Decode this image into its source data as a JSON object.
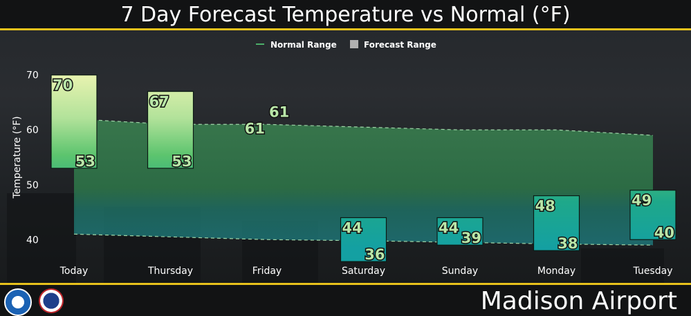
{
  "title": "7 Day Forecast Temperature vs Normal (°F)",
  "station": "Madison Airport",
  "logos": [
    "noaa-logo",
    "nws-logo"
  ],
  "colors": {
    "accent": "#e8c21c",
    "normal_line": "#4caf6a",
    "forecast_legend": "#b0b0b0"
  },
  "chart_data": {
    "type": "bar",
    "title": "7 Day Forecast Temperature vs Normal (°F)",
    "ylabel": "Temperature (°F)",
    "xlabel": "",
    "ylim": [
      38.4,
      72.1
    ],
    "yticks": [
      40,
      50,
      60,
      70
    ],
    "grid": false,
    "legend_position": "top-center",
    "legend": [
      "Normal Range",
      "Forecast Range"
    ],
    "categories": [
      "Today",
      "Thursday",
      "Friday",
      "Saturday",
      "Sunday",
      "Monday",
      "Tuesday"
    ],
    "forecast_high": [
      70,
      67,
      61,
      44,
      44,
      48,
      49
    ],
    "forecast_low": [
      53,
      53,
      61,
      36,
      39,
      38,
      40
    ],
    "normal_high": [
      62,
      61,
      61,
      60.5,
      60,
      60,
      59
    ],
    "normal_low": [
      41,
      40.5,
      40,
      39.8,
      39.5,
      39.2,
      39
    ]
  }
}
